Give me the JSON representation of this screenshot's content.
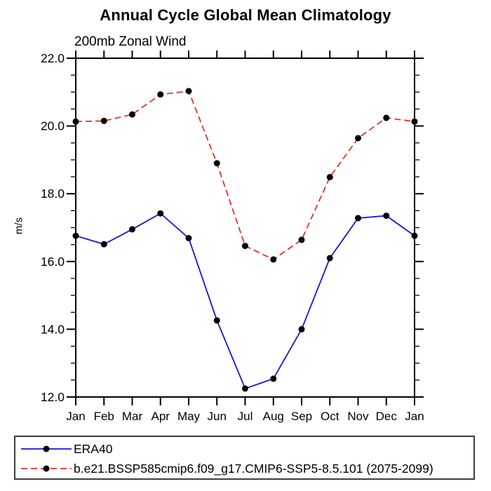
{
  "page": {
    "background": "#ffffff",
    "axis_color": "#000000",
    "legend_border_color": "#3d3d3d"
  },
  "header": {
    "title": "Annual Cycle Global Mean Climatology",
    "subtitle": "200mb Zonal Wind"
  },
  "chart_data": {
    "type": "line",
    "title": "Annual Cycle Global Mean Climatology",
    "subtitle": "200mb Zonal Wind",
    "xlabel": "",
    "ylabel": "m/s",
    "categories": [
      "Jan",
      "Feb",
      "Mar",
      "Apr",
      "May",
      "Jun",
      "Jul",
      "Aug",
      "Sep",
      "Oct",
      "Nov",
      "Dec",
      "Jan"
    ],
    "ylim": [
      12.0,
      22.0
    ],
    "ytick_major": [
      12.0,
      14.0,
      16.0,
      18.0,
      20.0,
      22.0
    ],
    "ytick_labels": [
      "12.0",
      "14.0",
      "16.0",
      "18.0",
      "20.0",
      "22.0"
    ],
    "ytick_minor_step": 0.5,
    "grid": false,
    "legend_position": "bottom-outside",
    "marker": "filled-circle",
    "marker_color": "#000000",
    "series": [
      {
        "name": "ERA40",
        "color": "#1414e1",
        "line_style": "solid",
        "values": [
          16.76,
          16.51,
          16.95,
          17.42,
          16.69,
          14.26,
          12.25,
          12.54,
          14.0,
          16.1,
          17.28,
          17.35,
          16.76
        ]
      },
      {
        "name": "b.e21.BSSP585cmip6.f09_g17.CMIP6-SSP5-8.5.101 (2075-2099)",
        "color": "#e73127",
        "line_style": "dashed",
        "values": [
          20.13,
          20.15,
          20.34,
          20.93,
          21.03,
          18.9,
          16.46,
          16.06,
          16.64,
          18.49,
          19.64,
          20.24,
          20.13
        ]
      }
    ]
  }
}
